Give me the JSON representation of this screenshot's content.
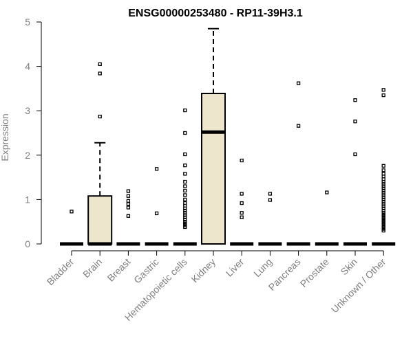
{
  "chart_data": {
    "type": "box",
    "title": "ENSG00000253480 - RP11-39H3.1",
    "xlabel": "",
    "ylabel": "Expression",
    "ylim": [
      0,
      5
    ],
    "yticks": [
      "0",
      "1",
      "2",
      "3",
      "4",
      "5"
    ],
    "grid": false,
    "legend": "none",
    "colors": {
      "box_fill": "#ede6cc",
      "stroke": "#000000",
      "tick_text": "#808080"
    },
    "categories": [
      "Bladder",
      "Brain",
      "Breast",
      "Gastric",
      "Hematopoietic cells",
      "Kidney",
      "Liver",
      "Lung",
      "Pancreas",
      "Prostate",
      "Skin",
      "Unknown / Other"
    ],
    "boxes": [
      {
        "category": "Bladder",
        "q1": 0,
        "median": 0,
        "q3": 0,
        "whisker_low": 0,
        "whisker_high": 0,
        "outliers": [
          0.73
        ]
      },
      {
        "category": "Brain",
        "q1": 0,
        "median": 0,
        "q3": 1.08,
        "whisker_low": 0,
        "whisker_high": 2.28,
        "outliers": [
          2.87,
          3.84,
          4.05
        ]
      },
      {
        "category": "Breast",
        "q1": 0,
        "median": 0,
        "q3": 0,
        "whisker_low": 0,
        "whisker_high": 0,
        "outliers": [
          0.63,
          0.82,
          0.9,
          0.97,
          1.08,
          1.19
        ]
      },
      {
        "category": "Gastric",
        "q1": 0,
        "median": 0,
        "q3": 0,
        "whisker_low": 0,
        "whisker_high": 0,
        "outliers": [
          0.69,
          1.69
        ]
      },
      {
        "category": "Hematopoietic cells",
        "q1": 0,
        "median": 0,
        "q3": 0,
        "whisker_low": 0,
        "whisker_high": 0,
        "outliers": [
          0.38,
          0.42,
          0.46,
          0.5,
          0.55,
          0.6,
          0.65,
          0.7,
          0.75,
          0.8,
          0.86,
          0.92,
          1.0,
          1.1,
          1.2,
          1.3,
          1.4,
          1.58,
          1.77,
          2.02,
          2.5,
          3.01
        ]
      },
      {
        "category": "Kidney",
        "q1": 0,
        "median": 2.52,
        "q3": 3.39,
        "whisker_low": 0,
        "whisker_high": 4.85,
        "outliers": []
      },
      {
        "category": "Liver",
        "q1": 0,
        "median": 0,
        "q3": 0,
        "whisker_low": 0,
        "whisker_high": 0,
        "outliers": [
          0.6,
          0.7,
          0.92,
          1.13,
          1.88
        ]
      },
      {
        "category": "Lung",
        "q1": 0,
        "median": 0,
        "q3": 0,
        "whisker_low": 0,
        "whisker_high": 0,
        "outliers": [
          0.99,
          1.13
        ]
      },
      {
        "category": "Pancreas",
        "q1": 0,
        "median": 0,
        "q3": 0,
        "whisker_low": 0,
        "whisker_high": 0,
        "outliers": [
          2.66,
          3.62
        ]
      },
      {
        "category": "Prostate",
        "q1": 0,
        "median": 0,
        "q3": 0,
        "whisker_low": 0,
        "whisker_high": 0,
        "outliers": [
          1.16
        ]
      },
      {
        "category": "Skin",
        "q1": 0,
        "median": 0,
        "q3": 0,
        "whisker_low": 0,
        "whisker_high": 0,
        "outliers": [
          2.02,
          2.76,
          3.24
        ]
      },
      {
        "category": "Unknown / Other",
        "q1": 0,
        "median": 0,
        "q3": 0,
        "whisker_low": 0,
        "whisker_high": 0,
        "outliers": [
          0.3,
          0.34,
          0.38,
          0.42,
          0.46,
          0.5,
          0.54,
          0.58,
          0.62,
          0.66,
          0.7,
          0.75,
          0.8,
          0.85,
          0.9,
          0.95,
          1.0,
          1.05,
          1.1,
          1.15,
          1.2,
          1.25,
          1.3,
          1.35,
          1.4,
          1.46,
          1.52,
          1.58,
          1.66,
          1.76,
          3.35,
          3.47
        ]
      }
    ]
  }
}
